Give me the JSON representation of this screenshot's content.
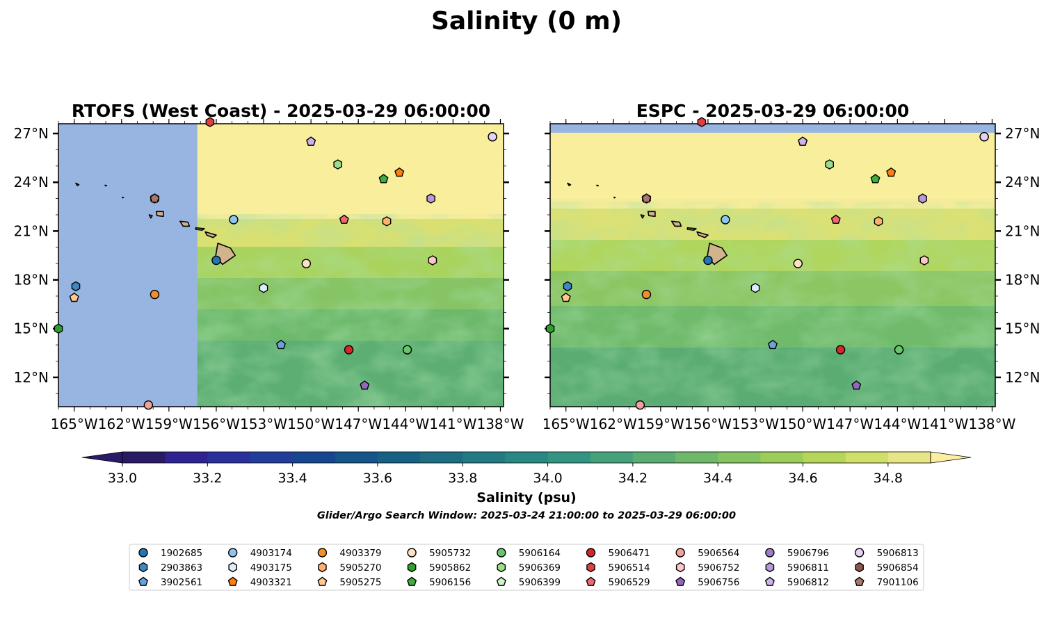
{
  "figure": {
    "suptitle": "Salinity (0 m)",
    "search_window": "Glider/Argo Search Window: 2025-03-24 21:00:00 to 2025-03-29 06:00:00"
  },
  "chart_data": [
    {
      "type": "map-contour",
      "panel": "left",
      "title": "RTOFS (West Coast) - 2025-03-29 06:00:00",
      "xlim": [
        -166.0,
        -137.8
      ],
      "ylim": [
        10.2,
        27.6
      ],
      "x_ticks": [
        "165°W",
        "162°W",
        "159°W",
        "156°W",
        "153°W",
        "150°W",
        "147°W",
        "144°W",
        "141°W",
        "138°W"
      ],
      "y_ticks": [
        "27°N",
        "24°N",
        "21°N",
        "18°N",
        "15°N",
        "12°N"
      ],
      "no_data_region": {
        "lon_west": -166.0,
        "lon_east": -157.2,
        "color": "#97b5e0"
      }
    },
    {
      "type": "map-contour",
      "panel": "right",
      "title": "ESPC - 2025-03-29 06:00:00",
      "xlim": [
        -166.0,
        -137.8
      ],
      "ylim": [
        10.2,
        27.6
      ],
      "x_ticks": [
        "165°W",
        "162°W",
        "159°W",
        "156°W",
        "153°W",
        "150°W",
        "147°W",
        "144°W",
        "141°W",
        "138°W"
      ],
      "y_ticks": [
        "27°N",
        "24°N",
        "21°N",
        "18°N",
        "15°N",
        "12°N"
      ],
      "no_data_region": {
        "lat_north": 27.6,
        "lat_south": 27.05,
        "color": "#97b5e0"
      }
    }
  ],
  "colorbar": {
    "label": "Salinity (psu)",
    "vmin": 33.0,
    "vmax": 34.9,
    "step": 0.1,
    "tick_labels": [
      "33.0",
      "33.2",
      "33.4",
      "33.6",
      "33.8",
      "34.0",
      "34.2",
      "34.4",
      "34.6",
      "34.8"
    ],
    "colors": [
      "#2a1a66",
      "#2e2391",
      "#2b2f9c",
      "#223d99",
      "#16468f",
      "#145488",
      "#196184",
      "#1f6d83",
      "#237a83",
      "#2a8783",
      "#359382",
      "#46a07b",
      "#5aac72",
      "#6fb86a",
      "#84c262",
      "#9ccc5b",
      "#b5d55b",
      "#d0de6a",
      "#e6e587",
      "#f5ec96"
    ],
    "under_color": "#2a1a66",
    "over_color": "#fbeea0"
  },
  "floats": [
    {
      "id": "1902685",
      "marker": "circle",
      "color": "#1f77b4",
      "lon": -156.0,
      "lat": 19.2
    },
    {
      "id": "2903863",
      "marker": "hexagon",
      "color": "#3f88c0",
      "lon": -164.9,
      "lat": 17.6
    },
    {
      "id": "3902561",
      "marker": "pentagon",
      "color": "#6aa3da",
      "lon": -151.9,
      "lat": 14.0
    },
    {
      "id": "4903174",
      "marker": "circle",
      "color": "#8ec6ea",
      "lon": -154.9,
      "lat": 21.7
    },
    {
      "id": "4903175",
      "marker": "hexagon",
      "color": "#dbeefa",
      "lon": -153.0,
      "lat": 17.5
    },
    {
      "id": "4903321",
      "marker": "pentagon",
      "color": "#ff7f0e",
      "lon": -144.4,
      "lat": 24.6
    },
    {
      "id": "4903379",
      "marker": "circle",
      "color": "#f28e2b",
      "lon": -159.9,
      "lat": 17.1
    },
    {
      "id": "5905270",
      "marker": "hexagon",
      "color": "#ffb06b",
      "lon": -145.2,
      "lat": 21.6
    },
    {
      "id": "5905275",
      "marker": "pentagon",
      "color": "#ffc98f",
      "lon": -165.0,
      "lat": 16.9
    },
    {
      "id": "5905732",
      "marker": "circle",
      "color": "#fde0c5",
      "lon": -150.3,
      "lat": 19.0
    },
    {
      "id": "5905862",
      "marker": "hexagon",
      "color": "#2ca02c",
      "lon": -166.0,
      "lat": 15.0
    },
    {
      "id": "5906156",
      "marker": "pentagon",
      "color": "#3bb03b",
      "lon": -145.4,
      "lat": 24.2
    },
    {
      "id": "5906164",
      "marker": "circle",
      "color": "#67c667",
      "lon": -143.9,
      "lat": 13.7
    },
    {
      "id": "5906369",
      "marker": "hexagon",
      "color": "#98df8a",
      "lon": -148.3,
      "lat": 25.1
    },
    {
      "id": "5906399",
      "marker": "pentagon",
      "color": "#cdf5c8",
      "lon": -150.0,
      "lat": 26.5
    },
    {
      "id": "5906471",
      "marker": "circle",
      "color": "#d62728",
      "lon": -147.6,
      "lat": 13.7
    },
    {
      "id": "5906514",
      "marker": "hexagon",
      "color": "#e0403f",
      "lon": -156.4,
      "lat": 27.7
    },
    {
      "id": "5906529",
      "marker": "pentagon",
      "color": "#f06a6a",
      "lon": -147.9,
      "lat": 21.7
    },
    {
      "id": "5906564",
      "marker": "circle",
      "color": "#f4a09d",
      "lon": -160.3,
      "lat": 10.3
    },
    {
      "id": "5906752",
      "marker": "hexagon",
      "color": "#fcc7c4",
      "lon": -142.3,
      "lat": 19.2
    },
    {
      "id": "5906756",
      "marker": "pentagon",
      "color": "#9467bd",
      "lon": -146.6,
      "lat": 11.5
    },
    {
      "id": "5906796",
      "marker": "circle",
      "color": "#a07cc8",
      "lon": -138.5,
      "lat": 26.8
    },
    {
      "id": "5906811",
      "marker": "hexagon",
      "color": "#b89ad8",
      "lon": -142.4,
      "lat": 23.0
    },
    {
      "id": "5906812",
      "marker": "pentagon",
      "color": "#cdb3ec",
      "lon": -150.0,
      "lat": 26.5
    },
    {
      "id": "5906813",
      "marker": "circle",
      "color": "#e4d2f7",
      "lon": -138.5,
      "lat": 26.8
    },
    {
      "id": "5906854",
      "marker": "hexagon",
      "color": "#8c564b",
      "lon": -159.9,
      "lat": 23.0
    },
    {
      "id": "7901106",
      "marker": "pentagon",
      "color": "#a8786b",
      "lon": -159.9,
      "lat": 23.0
    }
  ],
  "land_color": "#d2b48c"
}
